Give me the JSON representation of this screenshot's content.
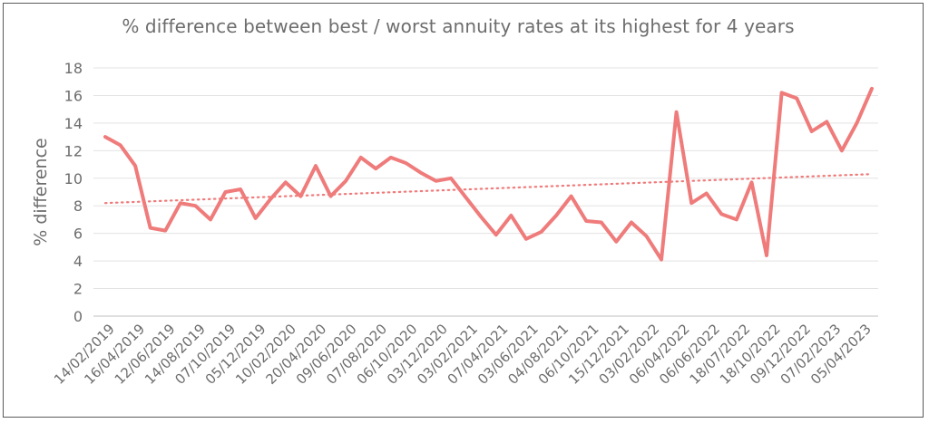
{
  "chart_data": {
    "type": "line",
    "title": "% difference between best / worst annuity rates at its highest for 4 years",
    "xlabel": "",
    "ylabel": "% difference",
    "ylim": [
      0,
      18
    ],
    "yticks": [
      0,
      2,
      4,
      6,
      8,
      10,
      12,
      14,
      16,
      18
    ],
    "grid": true,
    "legend": "none",
    "x_tick_labels": [
      "14/02/2019",
      "16/04/2019",
      "12/06/2019",
      "14/08/2019",
      "07/10/2019",
      "05/12/2019",
      "10/02/2020",
      "20/04/2020",
      "09/06/2020",
      "07/08/2020",
      "06/10/2020",
      "03/12/2020",
      "03/02/2021",
      "07/04/2021",
      "03/06/2021",
      "04/08/2021",
      "06/10/2021",
      "15/12/2021",
      "03/02/2022",
      "06/04/2022",
      "06/06/2022",
      "18/07/2022",
      "18/10/2022",
      "09/12/2022",
      "07/02/2023",
      "05/04/2023"
    ],
    "series": [
      {
        "values": [
          13.0,
          12.4,
          10.9,
          6.4,
          6.2,
          8.2,
          8.0,
          7.0,
          9.0,
          9.2,
          7.1,
          8.5,
          9.7,
          8.7,
          10.9,
          8.7,
          9.8,
          11.5,
          10.7,
          11.5,
          11.1,
          10.4,
          9.8,
          10.0,
          8.6,
          7.2,
          5.9,
          7.3,
          5.6,
          6.1,
          7.3,
          8.7,
          6.9,
          6.8,
          5.4,
          6.8,
          5.8,
          4.1,
          14.8,
          8.2,
          8.9,
          7.4,
          7.0,
          9.7,
          4.4,
          16.2,
          15.8,
          13.4,
          14.1,
          12.0,
          14.0,
          16.5
        ],
        "color": "#ef7b7b"
      }
    ],
    "trendline": {
      "style": "dotted",
      "start": 8.2,
      "end": 10.3,
      "color": "#ef7b7b"
    }
  }
}
